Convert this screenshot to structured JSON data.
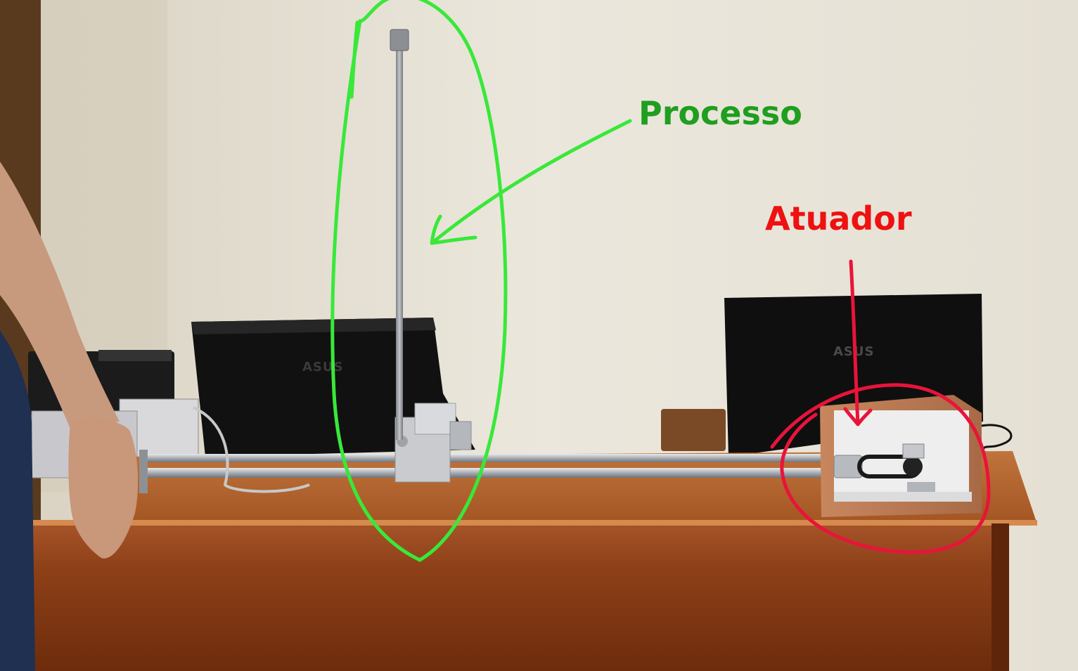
{
  "annotations": {
    "process_label": "Processo",
    "actuator_label": "Atuador"
  },
  "laptop_brand": "ASUS",
  "colors": {
    "process": "#1f9e1f",
    "process_stroke": "#39e83a",
    "actuator": "#ee1111",
    "actuator_stroke": "#e8143a",
    "wall": "#e7e2d6",
    "desk": "#9a4a1c",
    "desk_top": "#b5652c",
    "rail": "#b9bcc0",
    "laptop": "#141414"
  },
  "icons": {
    "process_outline": "freehand-ellipse-outline",
    "process_arrow": "freehand-arrow",
    "actuator_outline": "freehand-circle-outline",
    "actuator_arrow": "freehand-down-arrow"
  }
}
